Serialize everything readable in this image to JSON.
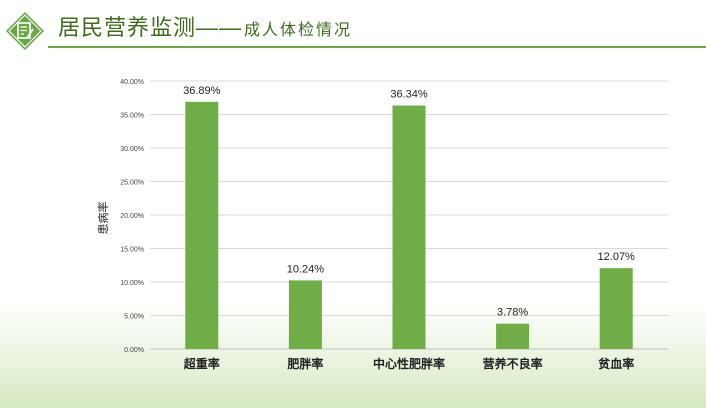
{
  "header": {
    "title_main": "居民营养监测",
    "title_dash": "——",
    "title_sub": "成人体检情况",
    "accent_color": "#6aa644",
    "logo_icon": "document-edit-icon"
  },
  "chart_data": {
    "type": "bar",
    "categories": [
      "超重率",
      "肥胖率",
      "中心性肥胖率",
      "营养不良率",
      "贫血率"
    ],
    "values": [
      36.89,
      10.24,
      36.34,
      3.78,
      12.07
    ],
    "value_labels": [
      "36.89%",
      "10.24%",
      "36.34%",
      "3.78%",
      "12.07%"
    ],
    "yticks": [
      "0.00%",
      "5.00%",
      "10.00%",
      "15.00%",
      "20.00%",
      "25.00%",
      "30.00%",
      "35.00%",
      "40.00%"
    ],
    "ylabel": "患病率",
    "xlabel": "",
    "ylim": [
      0,
      40
    ],
    "grid": true,
    "bar_color": "#70ad47"
  }
}
